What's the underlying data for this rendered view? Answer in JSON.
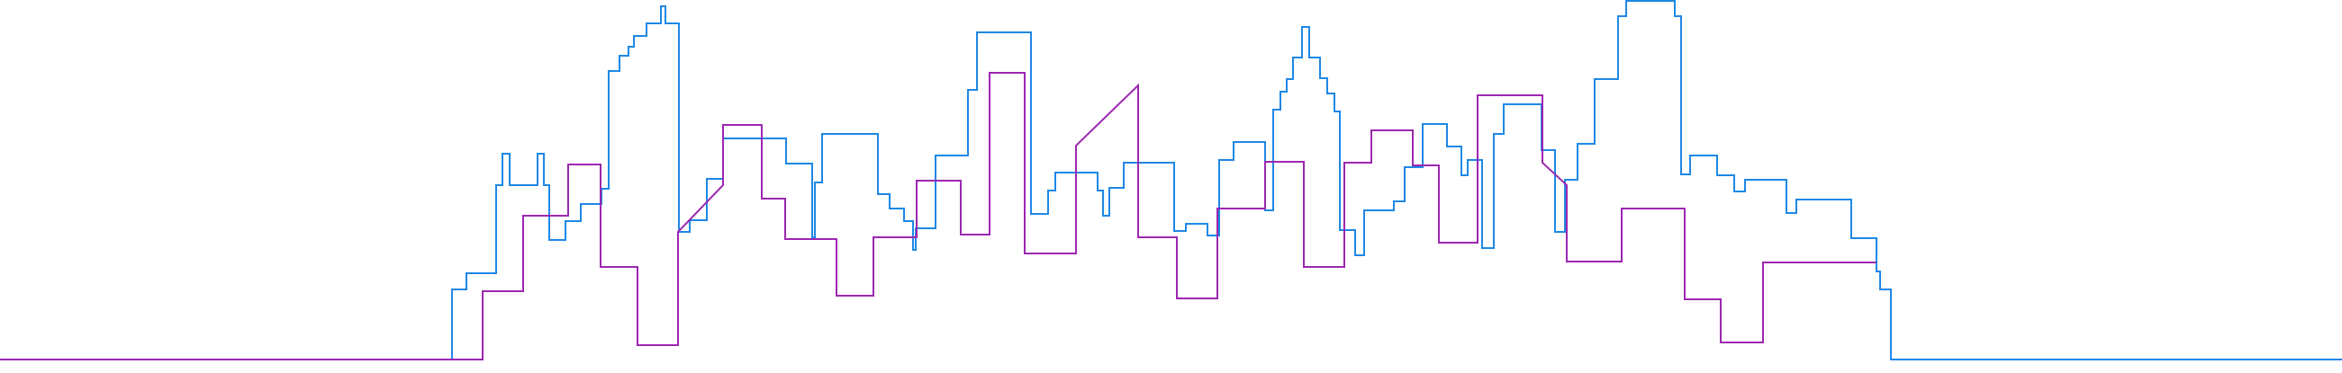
{
  "canvas": {
    "background": "#ffffff"
  },
  "skyline": {
    "layers": [
      {
        "name": "blue-skyline",
        "color": "#1E88E5"
      },
      {
        "name": "purple-skyline",
        "color": "#9C27B0"
      }
    ]
  }
}
